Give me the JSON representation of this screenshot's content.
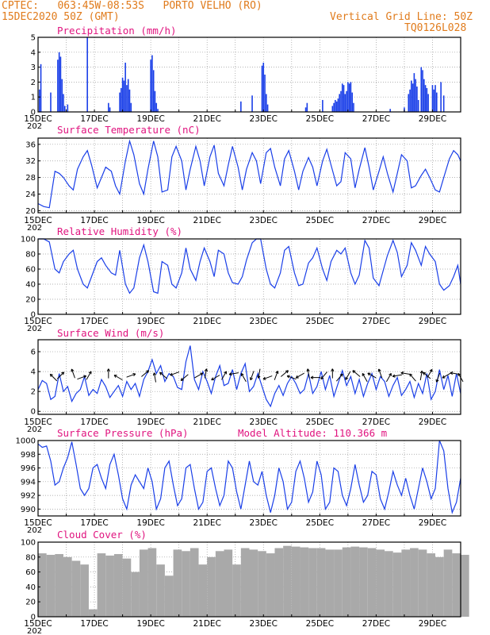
{
  "header": {
    "line1": "CPTEC:   063:45W-08:53S   PORTO VELHO (RO)",
    "line2": "15DEC2020 50Z (GMT)",
    "grid_note": "Vertical Grid Line: 50Z",
    "code": "TQ0126L028"
  },
  "date_labels": [
    "15DEC",
    "17DEC",
    "19DEC",
    "21DEC",
    "23DEC",
    "25DEC",
    "27DEC",
    "29DEC"
  ],
  "year_stub": "202",
  "colors": {
    "header": "#e07b1c",
    "title": "#e0147f",
    "series": "#1a3fe8",
    "cloud": "#a9a9a9",
    "grid": "#9a9a9a"
  },
  "chart_data": [
    {
      "type": "bar",
      "title": "Precipitation (mm/h)",
      "ylim": [
        0,
        5
      ],
      "yticks": [
        "0",
        "1",
        "2",
        "3",
        "4",
        "5"
      ],
      "x_unit": "days since 15DEC 00Z",
      "x_range": [
        0,
        15
      ],
      "values": [
        [
          0.05,
          1.5
        ],
        [
          0.1,
          3.2
        ],
        [
          0.45,
          1.3
        ],
        [
          0.7,
          3.5
        ],
        [
          0.75,
          4
        ],
        [
          0.8,
          3.7
        ],
        [
          0.85,
          2.2
        ],
        [
          0.9,
          1.2
        ],
        [
          0.95,
          0.4
        ],
        [
          1.05,
          0.5
        ],
        [
          1.75,
          5
        ],
        [
          2.5,
          0.6
        ],
        [
          2.55,
          0.3
        ],
        [
          2.9,
          1.3
        ],
        [
          2.95,
          1.6
        ],
        [
          3.0,
          2.3
        ],
        [
          3.05,
          2.1
        ],
        [
          3.1,
          3.3
        ],
        [
          3.15,
          1.8
        ],
        [
          3.2,
          2.2
        ],
        [
          3.25,
          1.5
        ],
        [
          3.3,
          0.6
        ],
        [
          4.0,
          3.5
        ],
        [
          4.05,
          3.8
        ],
        [
          4.1,
          2.8
        ],
        [
          4.15,
          1.4
        ],
        [
          4.2,
          0.6
        ],
        [
          4.25,
          0.2
        ],
        [
          7.2,
          0.7
        ],
        [
          7.6,
          1.1
        ],
        [
          7.95,
          3.1
        ],
        [
          8.0,
          3.3
        ],
        [
          8.05,
          2.5
        ],
        [
          8.1,
          1.2
        ],
        [
          8.15,
          0.5
        ],
        [
          9.5,
          0.3
        ],
        [
          9.55,
          0.6
        ],
        [
          10.1,
          0.8
        ],
        [
          10.45,
          0.4
        ],
        [
          10.5,
          0.6
        ],
        [
          10.55,
          0.8
        ],
        [
          10.6,
          0.7
        ],
        [
          10.65,
          0.9
        ],
        [
          10.7,
          1.2
        ],
        [
          10.75,
          1.4
        ],
        [
          10.8,
          1.9
        ],
        [
          10.85,
          1.8
        ],
        [
          10.9,
          1.2
        ],
        [
          10.95,
          1.4
        ],
        [
          11.0,
          2.0
        ],
        [
          11.05,
          1.9
        ],
        [
          11.1,
          2.0
        ],
        [
          11.15,
          1.3
        ],
        [
          11.2,
          0.6
        ],
        [
          12.5,
          0.2
        ],
        [
          13.0,
          0.3
        ],
        [
          13.15,
          1.2
        ],
        [
          13.2,
          1.5
        ],
        [
          13.25,
          2.1
        ],
        [
          13.3,
          1.9
        ],
        [
          13.35,
          2.6
        ],
        [
          13.4,
          2.2
        ],
        [
          13.45,
          1.7
        ],
        [
          13.5,
          0.8
        ],
        [
          13.6,
          3.0
        ],
        [
          13.65,
          2.8
        ],
        [
          13.7,
          2.2
        ],
        [
          13.75,
          1.8
        ],
        [
          13.8,
          1.6
        ],
        [
          13.85,
          1.2
        ],
        [
          14.0,
          1.8
        ],
        [
          14.05,
          1.5
        ],
        [
          14.1,
          1.8
        ],
        [
          14.15,
          1.3
        ],
        [
          14.3,
          2.0
        ],
        [
          14.4,
          1.1
        ]
      ]
    },
    {
      "type": "line",
      "title": "Surface Temperature (nC)",
      "ylim": [
        19.5,
        37.5
      ],
      "yticks": [
        "20",
        "24",
        "28",
        "32",
        "36"
      ],
      "x_range": [
        0,
        15
      ],
      "x": [
        0,
        0.2,
        0.4,
        0.6,
        0.75,
        0.9,
        1.1,
        1.25,
        1.4,
        1.6,
        1.75,
        1.9,
        2.1,
        2.25,
        2.4,
        2.6,
        2.75,
        2.9,
        3.1,
        3.25,
        3.4,
        3.6,
        3.75,
        3.9,
        4.1,
        4.25,
        4.4,
        4.6,
        4.75,
        4.9,
        5.1,
        5.25,
        5.4,
        5.6,
        5.75,
        5.9,
        6.1,
        6.25,
        6.4,
        6.6,
        6.75,
        6.9,
        7.1,
        7.25,
        7.4,
        7.6,
        7.75,
        7.9,
        8.1,
        8.25,
        8.4,
        8.6,
        8.75,
        8.9,
        9.1,
        9.25,
        9.4,
        9.6,
        9.75,
        9.9,
        10.1,
        10.25,
        10.4,
        10.6,
        10.75,
        10.9,
        11.1,
        11.25,
        11.4,
        11.6,
        11.75,
        11.9,
        12.1,
        12.25,
        12.4,
        12.6,
        12.75,
        12.9,
        13.1,
        13.25,
        13.4,
        13.6,
        13.75,
        13.9,
        14.1,
        14.25,
        14.4,
        14.6,
        14.75,
        14.9,
        15.0
      ],
      "values": [
        21.7,
        21.0,
        20.7,
        29.5,
        29.0,
        28.0,
        26.0,
        25.0,
        30.0,
        33.0,
        34.5,
        31.0,
        25.5,
        28.0,
        30.5,
        29.5,
        26.0,
        24.0,
        32.0,
        36.8,
        33.5,
        26.5,
        24.0,
        30.0,
        36.8,
        33.0,
        24.5,
        25.0,
        33.0,
        35.5,
        32.0,
        25.0,
        30.0,
        35.5,
        32.0,
        26.0,
        33.0,
        35.8,
        29.0,
        26.0,
        31.0,
        35.5,
        30.5,
        25.0,
        30.0,
        34.0,
        32.0,
        26.5,
        34.0,
        35.0,
        30.5,
        26.0,
        32.5,
        34.5,
        29.5,
        25.0,
        29.5,
        32.8,
        30.5,
        26.0,
        32.0,
        34.8,
        31.0,
        26.0,
        27.0,
        34.0,
        32.5,
        25.5,
        30.0,
        35.2,
        30.5,
        25.0,
        29.5,
        33.0,
        29.0,
        24.5,
        29.0,
        33.5,
        32.0,
        25.5,
        26.0,
        28.5,
        30.0,
        28.0,
        25.0,
        24.5,
        28.0,
        32.5,
        34.5,
        33.5,
        32.0
      ]
    },
    {
      "type": "line",
      "title": "Relative Humidity (%)",
      "ylim": [
        0,
        100
      ],
      "yticks": [
        "0",
        "20",
        "40",
        "60",
        "80",
        "100"
      ],
      "x_range": [
        0,
        15
      ],
      "x": [
        0,
        0.2,
        0.4,
        0.6,
        0.75,
        0.9,
        1.1,
        1.25,
        1.4,
        1.6,
        1.75,
        1.9,
        2.1,
        2.25,
        2.4,
        2.6,
        2.75,
        2.9,
        3.1,
        3.25,
        3.4,
        3.6,
        3.75,
        3.9,
        4.1,
        4.25,
        4.4,
        4.6,
        4.75,
        4.9,
        5.1,
        5.25,
        5.4,
        5.6,
        5.75,
        5.9,
        6.1,
        6.25,
        6.4,
        6.6,
        6.75,
        6.9,
        7.1,
        7.25,
        7.4,
        7.6,
        7.75,
        7.9,
        8.1,
        8.25,
        8.4,
        8.6,
        8.75,
        8.9,
        9.1,
        9.25,
        9.4,
        9.6,
        9.75,
        9.9,
        10.1,
        10.25,
        10.4,
        10.6,
        10.75,
        10.9,
        11.1,
        11.25,
        11.4,
        11.6,
        11.75,
        11.9,
        12.1,
        12.25,
        12.4,
        12.6,
        12.75,
        12.9,
        13.1,
        13.25,
        13.4,
        13.6,
        13.75,
        13.9,
        14.1,
        14.25,
        14.4,
        14.6,
        14.75,
        14.9,
        15.0
      ],
      "values": [
        100,
        100,
        96,
        60,
        55,
        70,
        80,
        85,
        60,
        40,
        35,
        50,
        70,
        75,
        65,
        55,
        52,
        85,
        40,
        28,
        35,
        75,
        92,
        70,
        30,
        28,
        70,
        65,
        40,
        35,
        55,
        88,
        60,
        45,
        70,
        88,
        70,
        50,
        85,
        80,
        55,
        42,
        40,
        50,
        72,
        95,
        100,
        100,
        60,
        40,
        35,
        55,
        85,
        90,
        55,
        38,
        40,
        68,
        75,
        88,
        60,
        45,
        70,
        85,
        80,
        88,
        55,
        40,
        52,
        98,
        88,
        48,
        38,
        58,
        78,
        98,
        82,
        50,
        65,
        95,
        85,
        65,
        90,
        80,
        70,
        40,
        32,
        38,
        50,
        65,
        40
      ]
    },
    {
      "type": "line",
      "title": "Surface Wind (m/s)",
      "ylim": [
        -0.3,
        7.2
      ],
      "yticks": [
        "0",
        "2",
        "4",
        "6"
      ],
      "x_range": [
        0,
        15
      ],
      "x": [
        0,
        0.15,
        0.3,
        0.45,
        0.6,
        0.75,
        0.9,
        1.05,
        1.2,
        1.35,
        1.5,
        1.65,
        1.8,
        1.95,
        2.1,
        2.25,
        2.4,
        2.55,
        2.7,
        2.85,
        3.0,
        3.15,
        3.3,
        3.45,
        3.6,
        3.75,
        3.9,
        4.05,
        4.2,
        4.35,
        4.5,
        4.65,
        4.8,
        4.95,
        5.1,
        5.25,
        5.4,
        5.55,
        5.7,
        5.85,
        6.0,
        6.15,
        6.3,
        6.45,
        6.6,
        6.75,
        6.9,
        7.05,
        7.2,
        7.35,
        7.5,
        7.65,
        7.8,
        7.95,
        8.1,
        8.25,
        8.4,
        8.55,
        8.7,
        8.85,
        9.0,
        9.15,
        9.3,
        9.45,
        9.6,
        9.75,
        9.9,
        10.05,
        10.2,
        10.35,
        10.5,
        10.65,
        10.8,
        10.95,
        11.1,
        11.25,
        11.4,
        11.55,
        11.7,
        11.85,
        12.0,
        12.15,
        12.3,
        12.45,
        12.6,
        12.75,
        12.9,
        13.05,
        13.2,
        13.35,
        13.5,
        13.65,
        13.8,
        13.95,
        14.1,
        14.25,
        14.4,
        14.55,
        14.7,
        14.85,
        15.0
      ],
      "values": [
        2.2,
        3.1,
        2.8,
        1.2,
        1.5,
        3.8,
        2.0,
        2.5,
        1.0,
        1.8,
        2.2,
        3.5,
        1.6,
        2.2,
        1.8,
        3.2,
        2.5,
        1.4,
        2.0,
        2.6,
        1.5,
        3.0,
        2.2,
        2.8,
        1.5,
        3.2,
        4.0,
        5.2,
        3.8,
        4.6,
        3.0,
        3.8,
        3.5,
        2.4,
        2.2,
        5.0,
        6.6,
        3.2,
        2.2,
        4.0,
        3.0,
        1.8,
        3.5,
        4.6,
        2.6,
        2.8,
        4.2,
        2.2,
        3.8,
        4.8,
        2.0,
        2.5,
        3.8,
        2.5,
        1.2,
        0.5,
        1.8,
        2.6,
        1.6,
        2.8,
        3.5,
        2.8,
        1.8,
        2.2,
        3.8,
        1.8,
        2.5,
        4.0,
        2.2,
        3.6,
        1.5,
        2.8,
        4.1,
        2.6,
        3.5,
        1.8,
        3.2,
        1.5,
        2.8,
        3.8,
        2.2,
        3.5,
        3.0,
        1.5,
        2.6,
        3.4,
        1.6,
        2.2,
        3.0,
        1.4,
        2.8,
        1.8,
        3.8,
        1.2,
        2.0,
        4.2,
        2.2,
        3.6,
        1.5,
        3.8,
        1.8
      ],
      "arrow_angles_deg": [
        135,
        45,
        110,
        20,
        60,
        90,
        150,
        20,
        40,
        100,
        140,
        200,
        220,
        30,
        80,
        210,
        60,
        190,
        120,
        250,
        260,
        200,
        70,
        40,
        160,
        210,
        100,
        180,
        230,
        90,
        50,
        240,
        140,
        120,
        150,
        110,
        60,
        190,
        170,
        130,
        80,
        60,
        250,
        210,
        170,
        120,
        140
      ],
      "arrow_x": [
        0.55,
        0.8,
        1.25,
        1.55,
        1.8,
        2.5,
        2.85,
        3.3,
        3.8,
        4.15,
        4.45,
        4.85,
        5.2,
        5.7,
        5.95,
        6.3,
        6.6,
        6.95,
        7.3,
        7.6,
        7.85,
        8.15,
        8.45,
        8.75,
        9.0,
        9.3,
        9.6,
        9.85,
        10.15,
        10.45,
        10.7,
        11.0,
        11.3,
        11.6,
        11.85,
        12.15,
        12.45,
        12.75,
        13.05,
        13.3,
        13.6,
        13.9,
        14.2,
        14.5,
        14.8,
        15.0,
        13.8
      ]
    },
    {
      "type": "line",
      "title": "Surface Pressure (hPa)",
      "note": "Model Altitude: 110.366 m",
      "ylim": [
        989,
        1000
      ],
      "yticks": [
        "990",
        "992",
        "994",
        "996",
        "998",
        "1000"
      ],
      "x_range": [
        0,
        15
      ],
      "x": [
        0,
        0.15,
        0.3,
        0.45,
        0.6,
        0.75,
        0.9,
        1.05,
        1.2,
        1.35,
        1.5,
        1.65,
        1.8,
        1.95,
        2.1,
        2.25,
        2.4,
        2.55,
        2.7,
        2.85,
        3.0,
        3.15,
        3.3,
        3.45,
        3.6,
        3.75,
        3.9,
        4.05,
        4.2,
        4.35,
        4.5,
        4.65,
        4.8,
        4.95,
        5.1,
        5.25,
        5.4,
        5.55,
        5.7,
        5.85,
        6.0,
        6.15,
        6.3,
        6.45,
        6.6,
        6.75,
        6.9,
        7.05,
        7.2,
        7.35,
        7.5,
        7.65,
        7.8,
        7.95,
        8.1,
        8.25,
        8.4,
        8.55,
        8.7,
        8.85,
        9.0,
        9.15,
        9.3,
        9.45,
        9.6,
        9.75,
        9.9,
        10.05,
        10.2,
        10.35,
        10.5,
        10.65,
        10.8,
        10.95,
        11.1,
        11.25,
        11.4,
        11.55,
        11.7,
        11.85,
        12.0,
        12.15,
        12.3,
        12.45,
        12.6,
        12.75,
        12.9,
        13.05,
        13.2,
        13.35,
        13.5,
        13.65,
        13.8,
        13.95,
        14.1,
        14.25,
        14.4,
        14.55,
        14.7,
        14.85,
        15.0
      ],
      "values": [
        999.5,
        999.0,
        999.2,
        997.0,
        993.5,
        994.0,
        996.0,
        997.5,
        999.8,
        996.5,
        993.0,
        992.0,
        993.0,
        996.0,
        996.5,
        994.5,
        993.0,
        996.5,
        998.0,
        995.0,
        991.5,
        990.0,
        993.5,
        995.0,
        994.0,
        993.0,
        996.0,
        994.0,
        990.0,
        991.5,
        996.0,
        997.0,
        993.5,
        990.5,
        991.5,
        996.0,
        996.5,
        993.0,
        990.0,
        991.0,
        995.5,
        996.0,
        993.0,
        990.5,
        992.0,
        997.0,
        996.0,
        992.5,
        990.0,
        993.5,
        997.0,
        994.0,
        993.5,
        995.5,
        992.0,
        989.5,
        992.0,
        996.0,
        994.0,
        990.0,
        991.0,
        995.5,
        997.0,
        994.5,
        991.0,
        992.5,
        997.0,
        995.0,
        990.0,
        991.0,
        996.0,
        995.5,
        992.0,
        990.5,
        993.0,
        996.5,
        993.5,
        991.0,
        992.0,
        995.5,
        995.0,
        991.5,
        990.0,
        992.5,
        995.5,
        993.5,
        992.0,
        994.5,
        992.0,
        990.0,
        993.0,
        996.0,
        994.0,
        991.5,
        993.0,
        1000.0,
        998.5,
        993.0,
        989.5,
        991.0,
        994.5
      ]
    },
    {
      "type": "area",
      "title": "Cloud Cover (%)",
      "ylim": [
        0,
        100
      ],
      "yticks": [
        "0",
        "20",
        "40",
        "60",
        "80",
        "100"
      ],
      "x_range": [
        0,
        15
      ],
      "x": [
        0,
        0.3,
        0.6,
        0.9,
        1.2,
        1.5,
        1.8,
        2.1,
        2.4,
        2.7,
        3.0,
        3.3,
        3.6,
        3.9,
        4.2,
        4.5,
        4.8,
        5.1,
        5.4,
        5.7,
        6.0,
        6.3,
        6.6,
        6.9,
        7.2,
        7.5,
        7.8,
        8.1,
        8.4,
        8.7,
        9.0,
        9.3,
        9.6,
        9.9,
        10.2,
        10.5,
        10.8,
        11.1,
        11.4,
        11.7,
        12.0,
        12.3,
        12.6,
        12.9,
        13.2,
        13.5,
        13.8,
        14.1,
        14.4,
        14.7,
        15.0
      ],
      "values": [
        85,
        83,
        84,
        80,
        75,
        70,
        10,
        85,
        82,
        84,
        78,
        60,
        90,
        92,
        70,
        55,
        90,
        88,
        92,
        70,
        80,
        88,
        90,
        70,
        92,
        90,
        88,
        85,
        92,
        95,
        94,
        93,
        92,
        92,
        90,
        90,
        93,
        94,
        93,
        92,
        90,
        88,
        86,
        90,
        92,
        90,
        85,
        80,
        90,
        85,
        83
      ]
    }
  ]
}
